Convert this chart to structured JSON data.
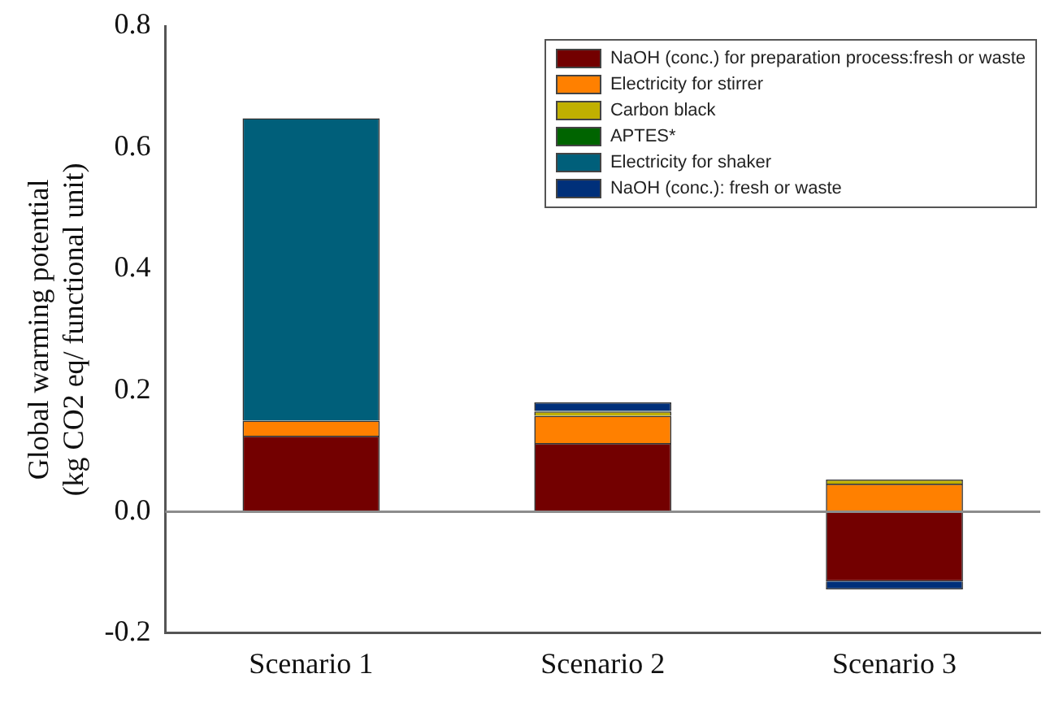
{
  "chart_data": {
    "type": "bar",
    "stacked": true,
    "categories": [
      "Scenario 1",
      "Scenario 2",
      "Scenario 3"
    ],
    "ylabel": "Global warming potential\n(kg CO2 eq/ functional unit)",
    "ylim": [
      -0.2,
      0.8
    ],
    "yticks": [
      -0.2,
      {
        "value": 0,
        "label": "0.0"
      },
      0.2,
      0.4,
      0.6,
      0.8
    ],
    "legend": "top right",
    "grid": false,
    "ref_lines": [
      {
        "axis": "y",
        "value": 0,
        "color": "#8c8c8c"
      }
    ],
    "series": [
      {
        "name": "NaOH (conc.) for preparation process:fresh or waste",
        "color": "#730000",
        "values": [
          0.125,
          0.113,
          -0.115
        ]
      },
      {
        "name": "Electricity for stirrer",
        "color": "#ff8000",
        "values": [
          0.025,
          0.045,
          0.046
        ]
      },
      {
        "name": "Carbon black",
        "color": "#c0b000",
        "values": [
          0,
          0.007,
          0.007
        ]
      },
      {
        "name": "APTES*",
        "color": "#006400",
        "values": [
          0,
          0.001,
          0
        ]
      },
      {
        "name": "Electricity for shaker",
        "color": "#005f7a",
        "values": [
          0.498,
          0,
          0
        ]
      },
      {
        "name": "NaOH (conc.): fresh or waste",
        "color": "#00307a",
        "values": [
          0,
          0.014,
          -0.013
        ]
      }
    ]
  }
}
